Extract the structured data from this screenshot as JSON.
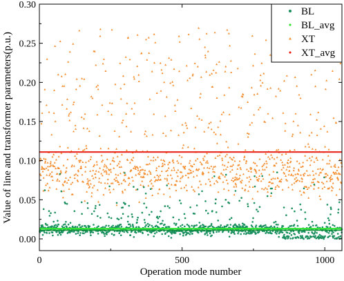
{
  "chart_data": {
    "type": "scatter",
    "xlabel": "Operation mode number",
    "ylabel": "Value of line and transformer parameters(p.u.)",
    "xlim": [
      0,
      1060
    ],
    "ylim": [
      -0.015,
      0.3
    ],
    "x_ticks": [
      "0",
      "500",
      "1000"
    ],
    "y_ticks": [
      "0.00",
      "0.05",
      "0.10",
      "0.15",
      "0.20",
      "0.25",
      "0.30"
    ],
    "grid": false,
    "legend_position": "top-right",
    "series": [
      {
        "name": "BL",
        "marker": "dot",
        "color": "#1a8f5e",
        "point_count": 1060,
        "x_range": [
          1,
          1060
        ],
        "y_typical_range": [
          0.0,
          0.04
        ],
        "y_max": 0.085,
        "mean": 0.012
      },
      {
        "name": "BL_avg",
        "type": "horizontal_line",
        "color": "#33e633",
        "value": 0.013
      },
      {
        "name": "XT",
        "marker": "triangle",
        "color": "#f58b2a",
        "point_count": 1060,
        "x_range": [
          1,
          1060
        ],
        "y_typical_range": [
          0.05,
          0.12
        ],
        "y_max": 0.27,
        "mean": 0.111
      },
      {
        "name": "XT_avg",
        "type": "horizontal_line",
        "color": "#e8261b",
        "value": 0.111
      }
    ]
  }
}
